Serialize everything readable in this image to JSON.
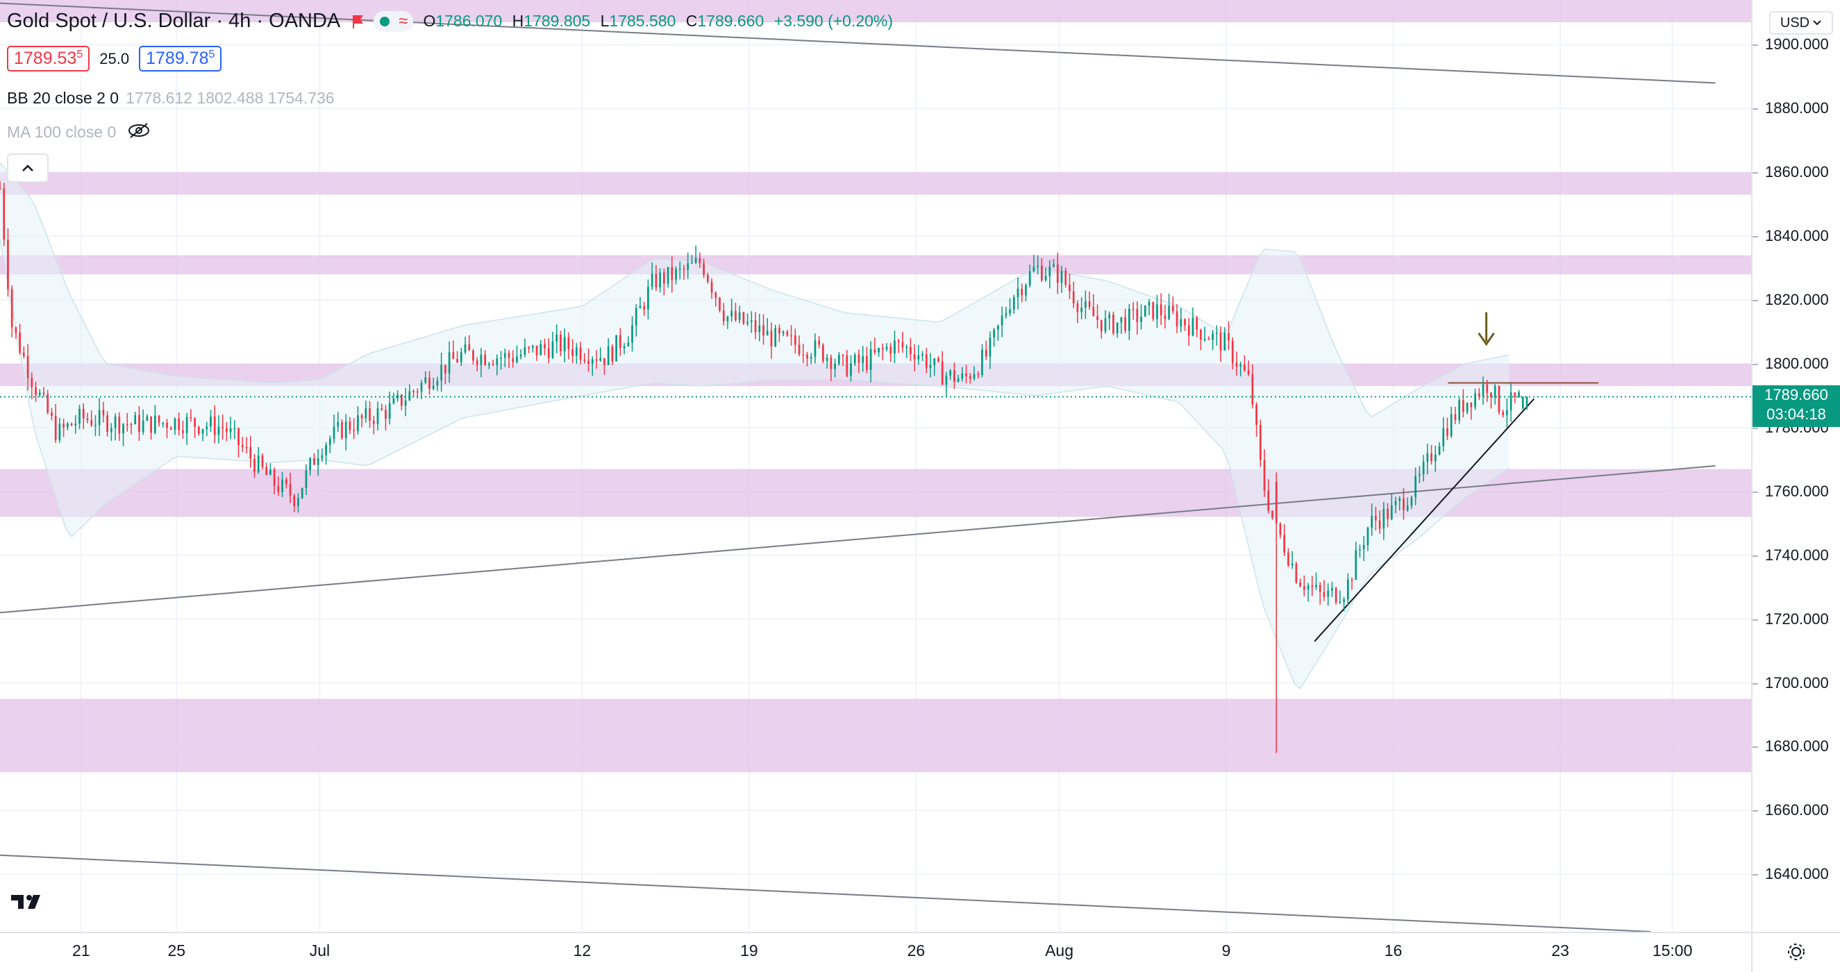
{
  "header": {
    "symbol_title": "Gold Spot / U.S. Dollar · 4h · OANDA",
    "ohlc": {
      "o_label": "O",
      "o_value": "1786.070",
      "h_label": "H",
      "h_value": "1789.805",
      "l_label": "L",
      "l_value": "1785.580",
      "c_label": "C",
      "c_value": "1789.660",
      "change": "+3.590 (+0.20%)"
    },
    "sell_price": "1789.53",
    "sell_price_sup": "5",
    "spread": "25.0",
    "buy_price": "1789.78",
    "buy_price_sup": "5"
  },
  "indicators": {
    "bb": {
      "label": "BB 20 close 2 0",
      "values": "1778.612  1802.488  1754.736"
    },
    "ma": {
      "label": "MA 100 close 0"
    }
  },
  "currency_button": "USD",
  "last_price": {
    "value": "1789.660",
    "countdown": "03:04:18"
  },
  "price_axis": [
    "1900.000",
    "1880.000",
    "1860.000",
    "1840.000",
    "1820.000",
    "1800.000",
    "1780.000",
    "1760.000",
    "1740.000",
    "1720.000",
    "1700.000",
    "1680.000",
    "1660.000",
    "1640.000"
  ],
  "price_axis_values": [
    1900,
    1880,
    1860,
    1840,
    1820,
    1800,
    1780,
    1760,
    1740,
    1720,
    1700,
    1680,
    1660,
    1640
  ],
  "time_axis": [
    {
      "label": "21",
      "day": 4
    },
    {
      "label": "25",
      "day": 8
    },
    {
      "label": "Jul",
      "day": 14
    },
    {
      "label": "12",
      "day": 25
    },
    {
      "label": "19",
      "day": 32
    },
    {
      "label": "26",
      "day": 39
    },
    {
      "label": "Aug",
      "day": 45
    },
    {
      "label": "9",
      "day": 52
    },
    {
      "label": "16",
      "day": 59
    },
    {
      "label": "23",
      "day": 66
    },
    {
      "label": "15:00",
      "day": 70.7
    }
  ],
  "icons": {
    "flag": "flag-icon",
    "data_window": "wave-icon",
    "eye_hidden": "eye-off-icon",
    "collapse": "chevron-up-icon",
    "settings": "gear-icon",
    "logo": "tradingview-logo",
    "arrow": "down-arrow-icon"
  },
  "colors": {
    "up": "#089981",
    "down": "#f23645",
    "zone": "#e1bee7",
    "bb_fill": "#e3f2f7",
    "sell": "#f23645",
    "buy": "#2962ff"
  },
  "chart_data": {
    "type": "candlestick",
    "title": "Gold Spot / U.S. Dollar · 4h · OANDA",
    "ylim": [
      1622,
      1914
    ],
    "x_unit": "trading days (June 17 – Aug 20)",
    "xlim": [
      0.6,
      74
    ],
    "last_price": 1789.66,
    "support_resistance_zones": [
      {
        "from": 1907,
        "to": 1914
      },
      {
        "from": 1853,
        "to": 1860
      },
      {
        "from": 1828,
        "to": 1834
      },
      {
        "from": 1793,
        "to": 1800
      },
      {
        "from": 1752,
        "to": 1767
      },
      {
        "from": 1672,
        "to": 1695
      }
    ],
    "trend_lines": [
      {
        "from": [
          0.6,
          1913
        ],
        "to": [
          72.5,
          1888
        ]
      },
      {
        "from": [
          0.6,
          1722
        ],
        "to": [
          72.5,
          1768
        ]
      },
      {
        "from": [
          0.6,
          1646
        ],
        "to": [
          69.8,
          1622
        ]
      },
      {
        "from": [
          55.7,
          1713
        ],
        "to": [
          64.9,
          1789
        ]
      }
    ],
    "horizontal_segment": {
      "from_day": 61.3,
      "to_day": 67.6,
      "price": 1794
    },
    "marker_arrow": {
      "day": 62.9,
      "price": 1807
    },
    "bollinger_upper_anchors": [
      [
        0.6,
        1863
      ],
      [
        2,
        1851
      ],
      [
        3.5,
        1822
      ],
      [
        5,
        1800
      ],
      [
        8,
        1796
      ],
      [
        12,
        1794
      ],
      [
        14,
        1795
      ],
      [
        16,
        1803
      ],
      [
        20,
        1812
      ],
      [
        25,
        1818
      ],
      [
        28,
        1833
      ],
      [
        30,
        1832
      ],
      [
        33,
        1823
      ],
      [
        36,
        1816
      ],
      [
        40,
        1813
      ],
      [
        44,
        1830
      ],
      [
        47,
        1826
      ],
      [
        50,
        1818
      ],
      [
        52,
        1809
      ],
      [
        53.5,
        1836
      ],
      [
        55,
        1835
      ],
      [
        56.5,
        1806
      ],
      [
        58,
        1783
      ],
      [
        60,
        1792
      ],
      [
        62,
        1800
      ],
      [
        64,
        1803
      ]
    ],
    "bollinger_lower_anchors": [
      [
        0.6,
        1839
      ],
      [
        2,
        1780
      ],
      [
        3.5,
        1745
      ],
      [
        5,
        1756
      ],
      [
        8,
        1771
      ],
      [
        12,
        1769
      ],
      [
        14,
        1770
      ],
      [
        16,
        1768
      ],
      [
        20,
        1783
      ],
      [
        25,
        1790
      ],
      [
        28,
        1794
      ],
      [
        30,
        1793
      ],
      [
        33,
        1795
      ],
      [
        36,
        1795
      ],
      [
        40,
        1793
      ],
      [
        44,
        1790
      ],
      [
        47,
        1793
      ],
      [
        50,
        1788
      ],
      [
        52,
        1772
      ],
      [
        53.5,
        1725
      ],
      [
        55,
        1697
      ],
      [
        56.5,
        1715
      ],
      [
        58,
        1734
      ],
      [
        60,
        1745
      ],
      [
        62,
        1758
      ],
      [
        64,
        1768
      ]
    ],
    "anchors": [
      [
        0.6,
        1855
      ],
      [
        1.1,
        1812
      ],
      [
        2,
        1794
      ],
      [
        3,
        1778
      ],
      [
        4,
        1783
      ],
      [
        5,
        1782
      ],
      [
        6.5,
        1781
      ],
      [
        8,
        1782
      ],
      [
        10,
        1780
      ],
      [
        12,
        1763
      ],
      [
        13,
        1758
      ],
      [
        14,
        1774
      ],
      [
        15,
        1780
      ],
      [
        17,
        1786
      ],
      [
        19,
        1798
      ],
      [
        20,
        1803
      ],
      [
        22,
        1802
      ],
      [
        24,
        1806
      ],
      [
        26,
        1802
      ],
      [
        27,
        1810
      ],
      [
        28,
        1826
      ],
      [
        29,
        1828
      ],
      [
        30,
        1832
      ],
      [
        31,
        1815
      ],
      [
        32,
        1812
      ],
      [
        33,
        1808
      ],
      [
        35,
        1804
      ],
      [
        36,
        1799
      ],
      [
        37,
        1801
      ],
      [
        38,
        1806
      ],
      [
        39,
        1804
      ],
      [
        40,
        1797
      ],
      [
        41,
        1795
      ],
      [
        42,
        1803
      ],
      [
        43,
        1821
      ],
      [
        44,
        1830
      ],
      [
        45,
        1828
      ],
      [
        46,
        1817
      ],
      [
        47,
        1812
      ],
      [
        48,
        1814
      ],
      [
        49,
        1817
      ],
      [
        50,
        1814
      ],
      [
        51,
        1810
      ],
      [
        52,
        1806
      ],
      [
        53,
        1794
      ],
      [
        53.5,
        1764
      ],
      [
        54,
        1750
      ],
      [
        54.5,
        1742
      ],
      [
        55,
        1733
      ],
      [
        56,
        1727
      ],
      [
        57,
        1729
      ],
      [
        57.5,
        1740
      ],
      [
        58,
        1750
      ],
      [
        59,
        1754
      ],
      [
        60,
        1762
      ],
      [
        61,
        1778
      ],
      [
        62,
        1788
      ],
      [
        63,
        1794
      ],
      [
        63.5,
        1786
      ],
      [
        64.5,
        1789.66
      ]
    ]
  }
}
